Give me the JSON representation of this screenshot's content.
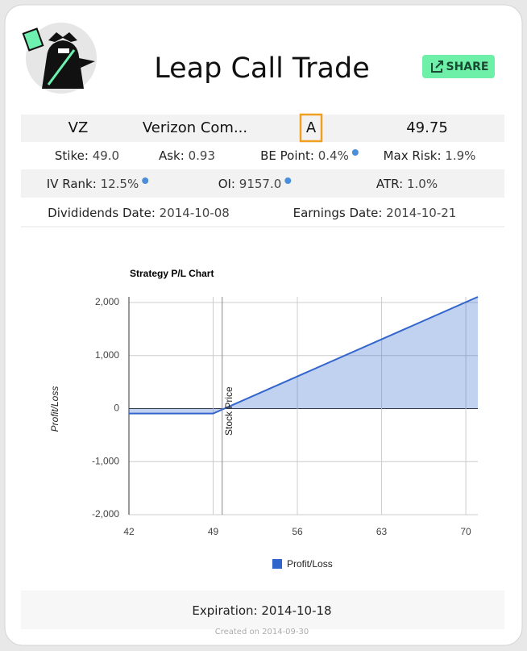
{
  "header": {
    "title": "Leap Call Trade",
    "share": "SHARE"
  },
  "table": {
    "rows": [
      [
        "VZ",
        "Verizon Com...",
        "A",
        "49.75"
      ],
      [
        {
          "label": "Stike:",
          "value": "49.0"
        },
        {
          "label": "Ask:",
          "value": "0.93"
        },
        {
          "label": "BE Point:",
          "value": "0.4%"
        },
        {
          "label": "Max Risk:",
          "value": "1.9%"
        }
      ],
      [
        {
          "label": "IV Rank:",
          "value": "12.5%"
        },
        {
          "label": "OI:",
          "value": "9157.0"
        },
        {
          "label": "ATR:",
          "value": "1.0%"
        }
      ],
      [
        {
          "label": "Divididends Date:",
          "value": "2014-10-08"
        },
        {
          "label": "Earnings Date:",
          "value": "2014-10-21"
        }
      ]
    ]
  },
  "chart_data": {
    "type": "area",
    "title": "Strategy P/L Chart",
    "y_label": "Profit/Loss",
    "x": [
      42,
      49,
      71
    ],
    "series": [
      {
        "name": "Profit/Loss",
        "color": "#3366cc",
        "values": [
          -93,
          -93,
          2107
        ]
      }
    ],
    "xlim": [
      42,
      71
    ],
    "xticks": [
      42,
      49,
      56,
      63,
      70
    ],
    "ylim": [
      -2000,
      2107
    ],
    "yticks": [
      {
        "value": -2000,
        "label": "-2,000"
      },
      {
        "value": -1000,
        "label": "-1,000"
      },
      0,
      {
        "value": 1000,
        "label": "1,000"
      },
      {
        "value": 2000,
        "label": "2,000"
      }
    ],
    "grid": true,
    "legend": "bottom",
    "annotations": [
      {
        "text": "Stock Price",
        "x": 49.75
      }
    ]
  },
  "footer": {
    "label": "Expiration:",
    "value": "2014-10-18",
    "created": "Created on 2014-09-30"
  }
}
